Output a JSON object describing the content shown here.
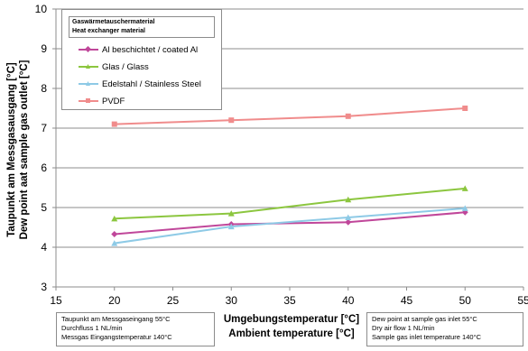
{
  "chart_data": {
    "type": "line",
    "xlabel": [
      "Umgebungstemperatur [°C]",
      "Ambient temperature [°C]"
    ],
    "ylabel": [
      "Taupunkt am Messgasausgang [°C]",
      "Dew point aat sample gas outlet [°C]"
    ],
    "xlim": [
      15,
      55
    ],
    "ylim": [
      3,
      10
    ],
    "x_ticks": [
      "15",
      "20",
      "25",
      "30",
      "35",
      "40",
      "45",
      "50",
      "55"
    ],
    "y_ticks": [
      "3",
      "4",
      "5",
      "6",
      "7",
      "8",
      "9",
      "10"
    ],
    "grid": "horizontal",
    "legend_title": [
      "Gaswärmetauschermaterial",
      "Heat exchanger material"
    ],
    "legend_position": "top-left",
    "series": [
      {
        "name": "Al beschichtet / coated Al",
        "color": "#c0479a",
        "marker": "diamond",
        "x": [
          20,
          30,
          40,
          50
        ],
        "y": [
          4.33,
          4.58,
          4.63,
          4.88
        ]
      },
      {
        "name": "Glas / Glass",
        "color": "#8cc63f",
        "marker": "triangle",
        "x": [
          20,
          30,
          40,
          50
        ],
        "y": [
          4.72,
          4.85,
          5.2,
          5.48
        ]
      },
      {
        "name": "Edelstahl / Stainless Steel",
        "color": "#8ecae6",
        "marker": "triangle",
        "x": [
          20,
          30,
          40,
          50
        ],
        "y": [
          4.1,
          4.52,
          4.75,
          4.98
        ]
      },
      {
        "name": "PVDF",
        "color": "#f08c8c",
        "marker": "square",
        "x": [
          20,
          30,
          40,
          50
        ],
        "y": [
          7.1,
          7.2,
          7.3,
          7.5
        ]
      }
    ],
    "notes": {
      "left": [
        "Taupunkt am Messgaseingang 55°C",
        "Durchfluss 1 NL/min",
        "Messgas Eingangstemperatur 140°C"
      ],
      "right": [
        "Dew point at sample gas inlet 55°C",
        "Dry air flow 1 NL/min",
        "Sample gas inlet temperature 140°C"
      ]
    }
  }
}
